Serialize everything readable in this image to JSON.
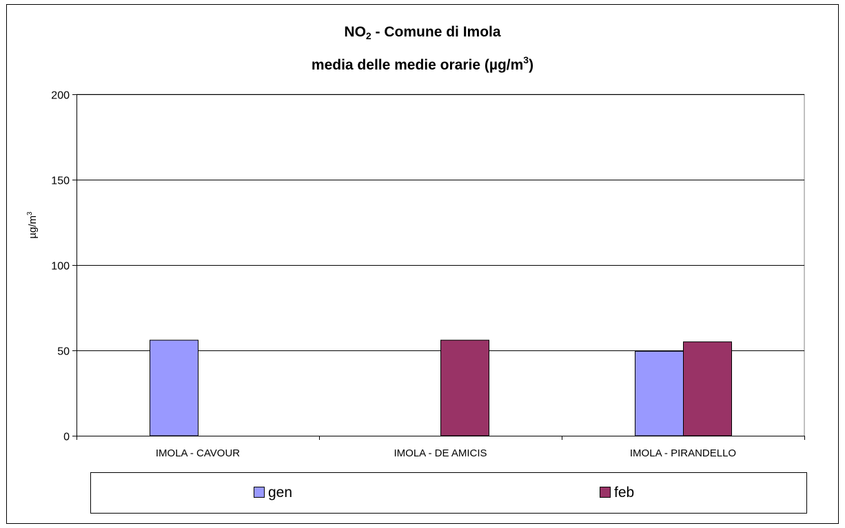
{
  "chart_data": {
    "type": "bar",
    "title": {
      "line1_main": "NO",
      "line1_sub": "2",
      "line1_rest": " - Comune di Imola",
      "line2_main": "media delle medie orarie (µg/m",
      "line2_sup": "3",
      "line2_rest": ")"
    },
    "ylabel_main": "µg/m",
    "ylabel_sup": "3",
    "xlabel": "",
    "ylim": [
      0,
      200
    ],
    "yticks": [
      "0",
      "50",
      "100",
      "150",
      "200"
    ],
    "categories": [
      "IMOLA - CAVOUR",
      "IMOLA - DE AMICIS",
      "IMOLA - PIRANDELLO"
    ],
    "series": [
      {
        "name": "gen",
        "color": "#9999ff",
        "values": [
          56,
          null,
          49.5
        ]
      },
      {
        "name": "feb",
        "color": "#993366",
        "values": [
          null,
          56,
          55
        ]
      }
    ],
    "grid": true,
    "legend_position": "bottom"
  }
}
